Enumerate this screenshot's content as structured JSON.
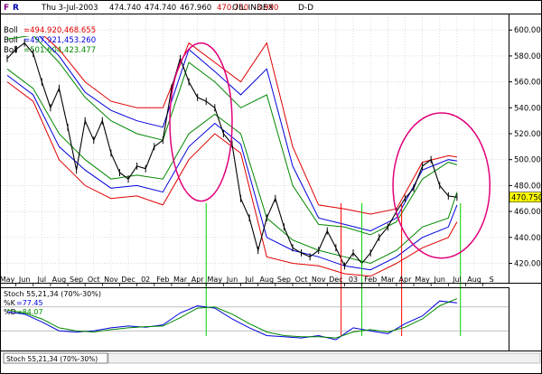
{
  "header": {
    "flags": [
      "F",
      "R"
    ],
    "date": "Thu 3-Jul-2003",
    "open": "474.740",
    "high": "474.740",
    "low": "467.960",
    "close": "470.750",
    "change": "-3.990",
    "title": "OIL INDEX",
    "period": "D-D"
  },
  "legend": [
    {
      "label": "Boll",
      "values": "=494.920,468.655",
      "color": "#e00000"
    },
    {
      "label": "Boll",
      "values": "=497.921,453.260",
      "color": "#0000dd"
    },
    {
      "label": "Boll",
      "values": "=501.604,423.477",
      "color": "#008800"
    }
  ],
  "last_price_label": "470.750",
  "stoch": {
    "title": "Stoch 55,21,34 (70%-30%)",
    "k_label": "%K",
    "k_value": "=77.45",
    "d_label": "%D",
    "d_value": "=84.07",
    "tab_label": "Stoch 55,21,34 (70%-30%)"
  },
  "colors": {
    "price": "#000000",
    "boll1": "#e00000",
    "boll2": "#0000dd",
    "boll3": "#008800",
    "ellipse": "#e0007a",
    "marker_green": "#00cc00",
    "marker_red": "#ff0000",
    "last_price_bg": "#ffff00"
  },
  "chart_data": {
    "type": "line",
    "title": "OIL INDEX",
    "x_tick_labels": [
      "May",
      "Jun",
      "Jul",
      "Aug",
      "Sep",
      "Oct",
      "Nov",
      "Dec",
      "02",
      "Feb",
      "Mar",
      "Apr",
      "May",
      "Jun",
      "Jul",
      "Aug",
      "Sep",
      "Oct",
      "Nov",
      "Dec",
      "03",
      "Feb",
      "Mar",
      "Apr",
      "May",
      "Jun",
      "Jul",
      "Aug",
      "S"
    ],
    "y_ticks": [
      420,
      440,
      460,
      480,
      500,
      520,
      540,
      560,
      580,
      600
    ],
    "y_tick_labels": [
      "420.000",
      "440.000",
      "460.000",
      "480.000",
      "500.000",
      "520.000",
      "540.000",
      "560.000",
      "580.000",
      "600.000"
    ],
    "ylim": [
      405,
      612
    ],
    "x_month_range": [
      0,
      28.3
    ],
    "price_series": {
      "x": [
        0,
        0.5,
        1,
        1.5,
        2,
        2.5,
        3,
        3.5,
        4,
        4.5,
        5,
        5.5,
        6,
        6.5,
        7,
        7.5,
        8,
        8.5,
        9,
        9.5,
        10,
        10.5,
        11,
        11.5,
        12,
        12.5,
        13,
        13.5,
        14,
        14.5,
        15,
        15.5,
        16,
        16.5,
        17,
        17.5,
        18,
        18.5,
        19,
        19.5,
        20,
        20.5,
        21,
        21.5,
        22,
        22.5,
        23,
        23.5,
        24,
        24.5,
        25,
        25.5,
        26
      ],
      "y": [
        578,
        585,
        590,
        582,
        560,
        540,
        555,
        525,
        492,
        530,
        515,
        530,
        505,
        490,
        485,
        495,
        493,
        510,
        515,
        555,
        578,
        560,
        548,
        545,
        540,
        520,
        512,
        470,
        455,
        430,
        455,
        470,
        448,
        432,
        428,
        425,
        430,
        445,
        432,
        418,
        428,
        420,
        428,
        440,
        448,
        460,
        470,
        478,
        495,
        500,
        480,
        472,
        471
      ]
    },
    "boll_series": [
      {
        "name": "Boll",
        "upper": {
          "x": [
            0,
            1.5,
            3,
            4.5,
            6,
            7.5,
            9,
            10.5,
            12,
            13.5,
            15,
            16.5,
            18,
            19.5,
            21,
            22.5,
            24,
            25.5,
            26
          ],
          "y": [
            600,
            603,
            585,
            560,
            545,
            540,
            540,
            590,
            575,
            560,
            590,
            510,
            465,
            462,
            458,
            462,
            498,
            503,
            502
          ]
        },
        "lower": {
          "x": [
            0,
            1.5,
            3,
            4.5,
            6,
            7.5,
            9,
            10.5,
            12,
            13.5,
            15,
            16.5,
            18,
            19.5,
            21,
            22.5,
            24,
            25.5,
            26
          ],
          "y": [
            560,
            545,
            500,
            480,
            470,
            472,
            465,
            500,
            520,
            505,
            425,
            420,
            418,
            412,
            410,
            420,
            432,
            440,
            452
          ]
        }
      },
      {
        "name": "Boll",
        "upper": {
          "x": [
            0,
            1.5,
            3,
            4.5,
            6,
            7.5,
            9,
            10.5,
            12,
            13.5,
            15,
            16.5,
            18,
            19.5,
            21,
            22.5,
            24,
            25.5,
            26
          ],
          "y": [
            597,
            600,
            580,
            552,
            538,
            530,
            525,
            585,
            568,
            550,
            570,
            495,
            455,
            450,
            445,
            455,
            492,
            500,
            499
          ]
        },
        "lower": {
          "x": [
            0,
            1.5,
            3,
            4.5,
            6,
            7.5,
            9,
            10.5,
            12,
            13.5,
            15,
            16.5,
            18,
            19.5,
            21,
            22.5,
            24,
            25.5,
            26
          ],
          "y": [
            565,
            550,
            510,
            492,
            478,
            480,
            475,
            510,
            528,
            512,
            440,
            430,
            425,
            418,
            415,
            425,
            440,
            448,
            465
          ]
        }
      },
      {
        "name": "Boll",
        "upper": {
          "x": [
            0,
            1.5,
            3,
            4.5,
            6,
            7.5,
            9,
            10.5,
            12,
            13.5,
            15,
            16.5,
            18,
            19.5,
            21,
            22.5,
            24,
            25.5,
            26
          ],
          "y": [
            593,
            596,
            575,
            548,
            530,
            520,
            515,
            575,
            560,
            540,
            550,
            480,
            450,
            448,
            442,
            452,
            485,
            498,
            496
          ]
        },
        "lower": {
          "x": [
            0,
            1.5,
            3,
            4.5,
            6,
            7.5,
            9,
            10.5,
            12,
            13.5,
            15,
            16.5,
            18,
            19.5,
            21,
            22.5,
            24,
            25.5,
            26
          ],
          "y": [
            570,
            555,
            520,
            500,
            485,
            488,
            485,
            520,
            535,
            520,
            455,
            438,
            430,
            425,
            420,
            430,
            448,
            455,
            475
          ]
        }
      }
    ],
    "annotation_ellipses": [
      {
        "x_center": 11.2,
        "y_center": 529,
        "x_radius": 1.8,
        "y_radius": 61
      },
      {
        "x_center": 25.1,
        "y_center": 480,
        "x_radius": 2.8,
        "y_radius": 56
      }
    ],
    "vertical_markers": [
      {
        "x": 11.5,
        "color": "green"
      },
      {
        "x": 19.3,
        "color": "red"
      },
      {
        "x": 20.5,
        "color": "green"
      },
      {
        "x": 22.8,
        "color": "red"
      },
      {
        "x": 26.2,
        "color": "green"
      }
    ],
    "stochastic": {
      "ylim": [
        0,
        100
      ],
      "levels": [
        30,
        70
      ],
      "k": {
        "x": [
          0,
          1,
          2,
          3,
          4,
          5,
          6,
          7,
          8,
          9,
          10,
          11,
          12,
          13,
          14,
          15,
          16,
          17,
          18,
          19,
          20,
          21,
          22,
          23,
          24,
          25,
          26
        ],
        "y": [
          62,
          58,
          45,
          30,
          28,
          30,
          35,
          38,
          36,
          40,
          60,
          72,
          68,
          50,
          35,
          22,
          20,
          18,
          22,
          15,
          35,
          30,
          25,
          42,
          55,
          80,
          77
        ]
      },
      "d": {
        "x": [
          0,
          1,
          2,
          3,
          4,
          5,
          6,
          7,
          8,
          9,
          10,
          11,
          12,
          13,
          14,
          15,
          16,
          17,
          18,
          19,
          20,
          21,
          22,
          23,
          24,
          25,
          26
        ],
        "y": [
          65,
          60,
          50,
          35,
          30,
          28,
          32,
          35,
          37,
          38,
          52,
          68,
          70,
          58,
          42,
          28,
          22,
          20,
          20,
          18,
          28,
          32,
          28,
          36,
          50,
          72,
          84
        ]
      }
    }
  }
}
